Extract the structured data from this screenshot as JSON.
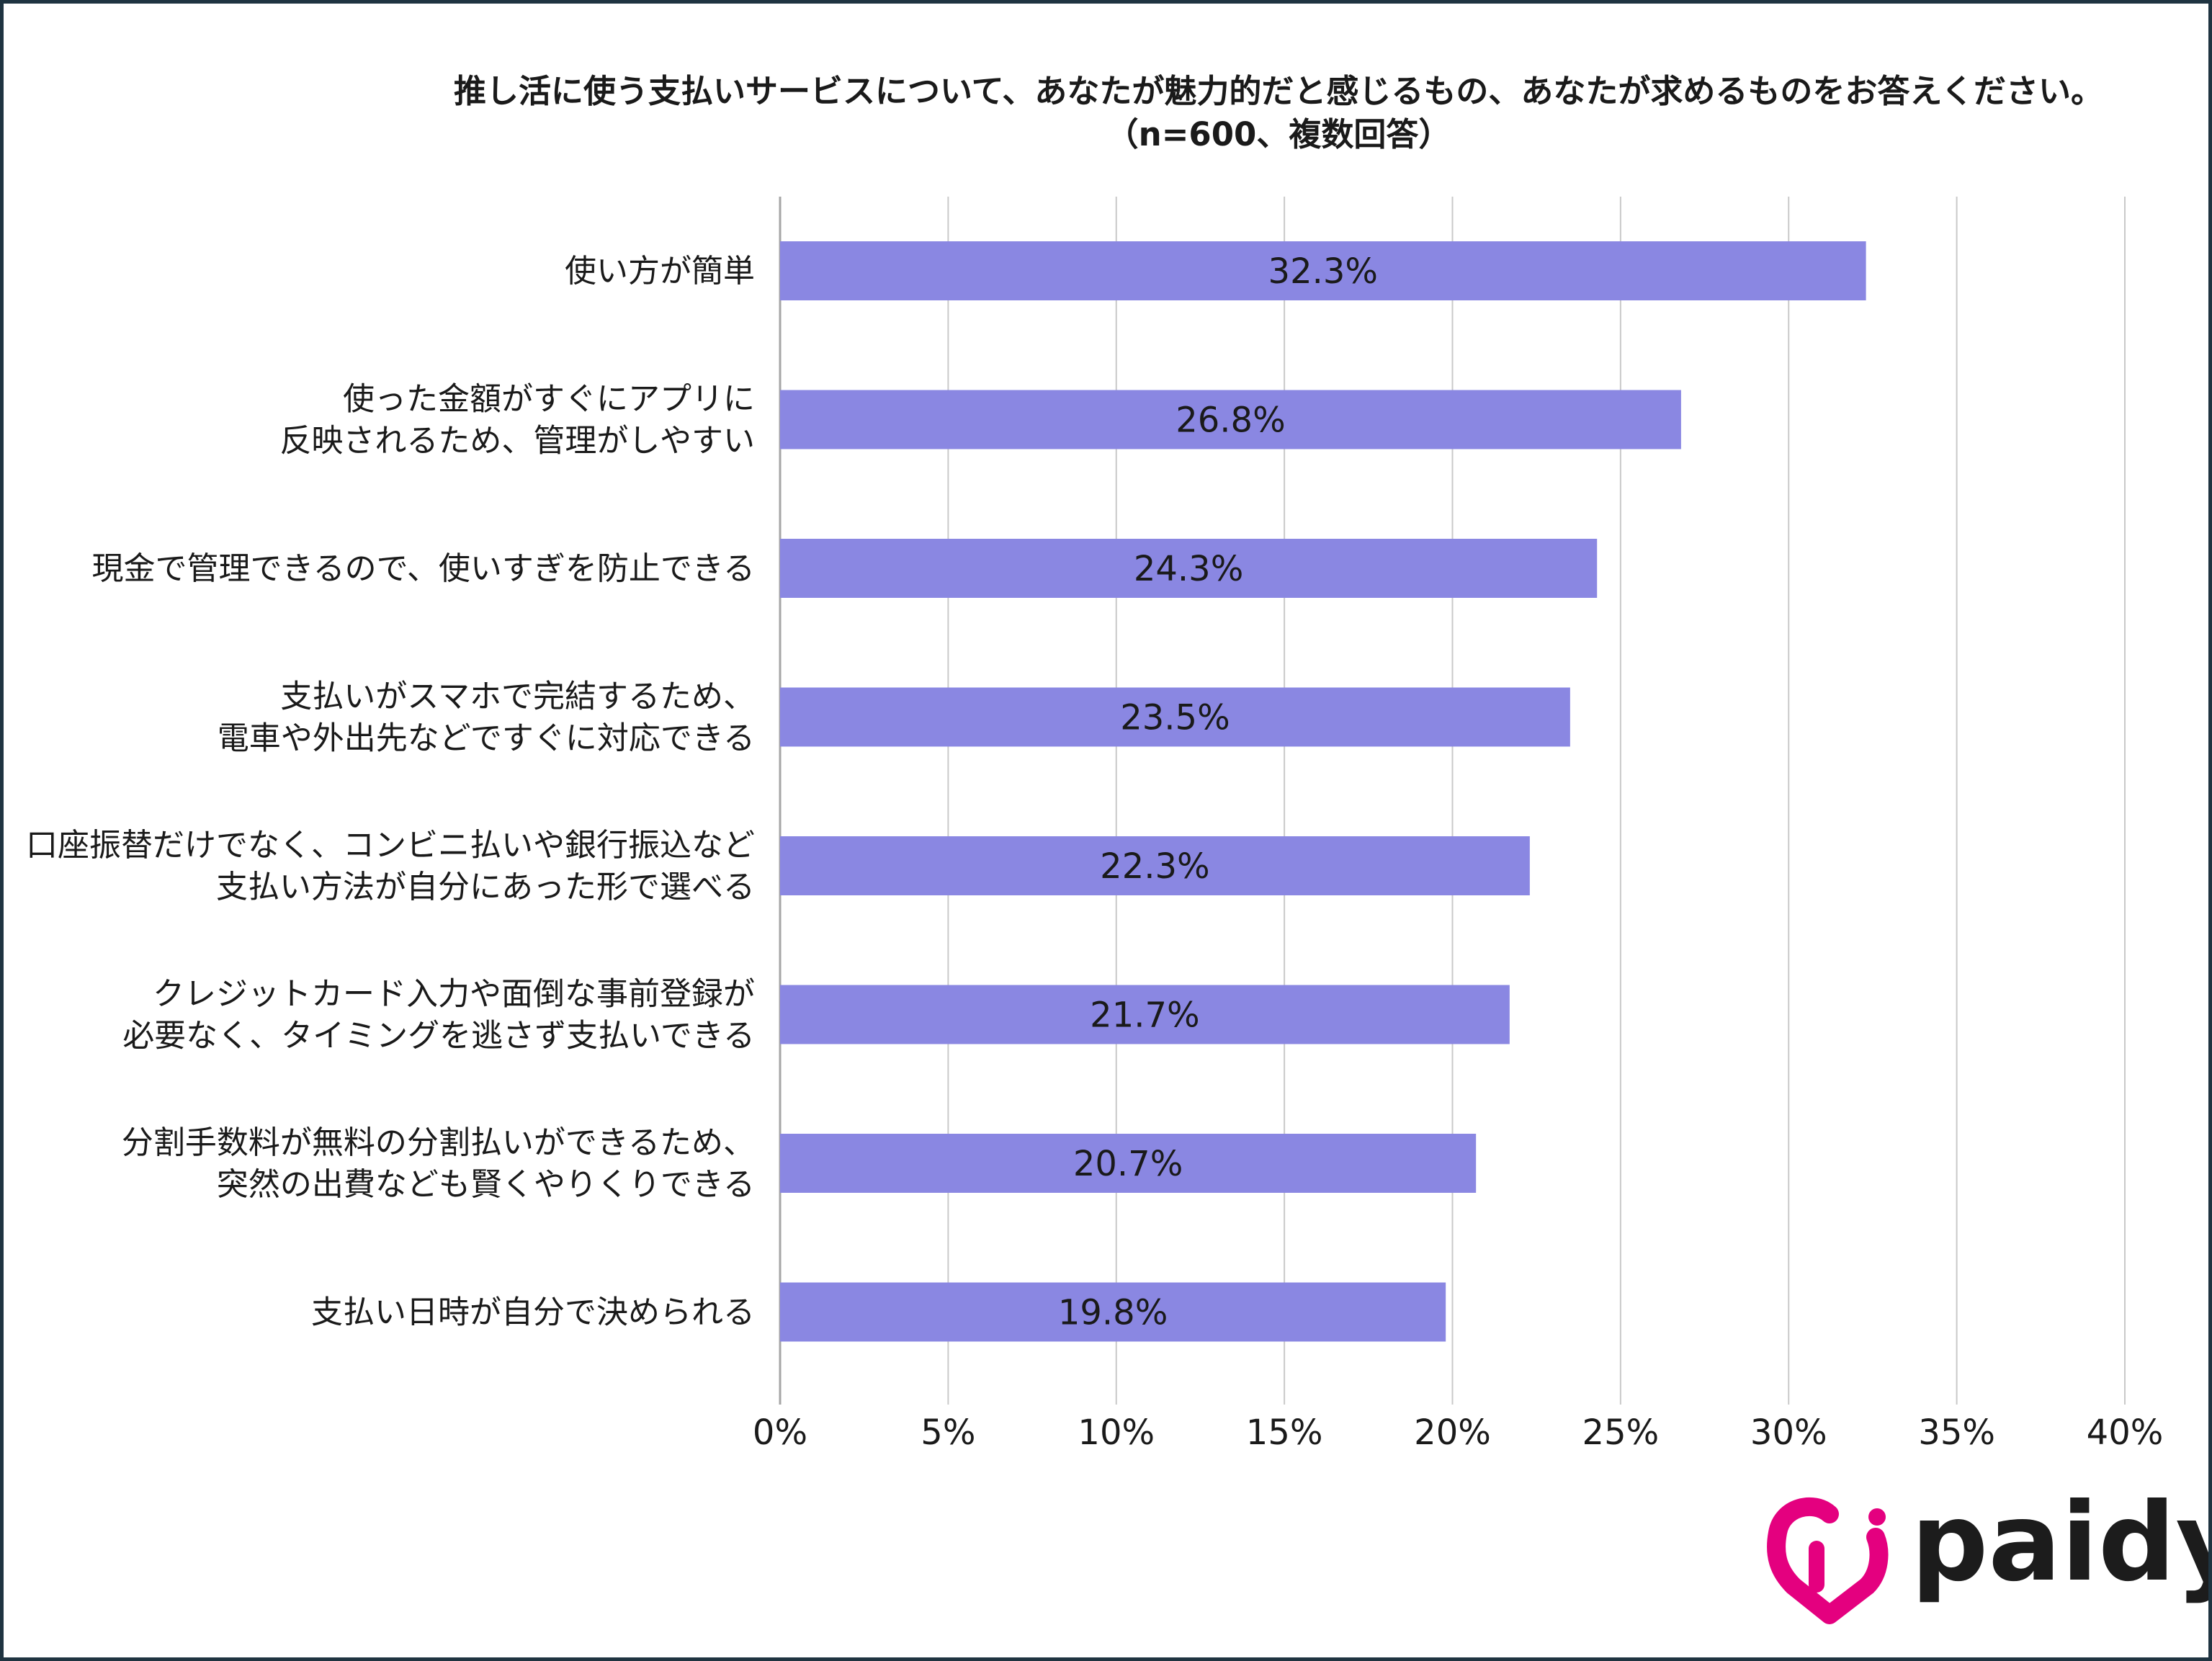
{
  "title_lines": [
    "推し活に使う支払いサービスについて、あなたが魅力的だと感じるもの、あなたが求めるものをお答えください。",
    "（n=600、複数回答）"
  ],
  "logo": {
    "wordmark": "paidy",
    "icon": "paidy-heart-logo-icon",
    "color": "#e4007f"
  },
  "chart_data": {
    "type": "bar",
    "orientation": "horizontal",
    "categories": [
      [
        "使い方が簡単"
      ],
      [
        "使った金額がすぐにアプリに",
        "反映されるため、管理がしやすい"
      ],
      [
        "現金で管理できるので、使いすぎを防止できる"
      ],
      [
        "支払いがスマホで完結するため、",
        "電車や外出先などですぐに対応できる"
      ],
      [
        "口座振替だけでなく、コンビニ払いや銀行振込など",
        "支払い方法が自分にあった形で選べる"
      ],
      [
        "クレジットカード入力や面倒な事前登録が",
        "必要なく、タイミングを逃さず支払いできる"
      ],
      [
        "分割手数料が無料の分割払いができるため、",
        "突然の出費なども賢くやりくりできる"
      ],
      [
        "支払い日時が自分で決められる"
      ]
    ],
    "values": [
      32.3,
      26.8,
      24.3,
      23.5,
      22.3,
      21.7,
      20.7,
      19.8
    ],
    "value_labels": [
      "32.3%",
      "26.8%",
      "24.3%",
      "23.5%",
      "22.3%",
      "21.7%",
      "20.7%",
      "19.8%"
    ],
    "xlim": [
      0,
      40
    ],
    "ticks": [
      0,
      5,
      10,
      15,
      20,
      25,
      30,
      35,
      40
    ],
    "tick_labels": [
      "0%",
      "5%",
      "10%",
      "15%",
      "20%",
      "25%",
      "30%",
      "35%",
      "40%"
    ],
    "bar_color": "#8a87e2",
    "gridlines": true,
    "legend": "none"
  }
}
